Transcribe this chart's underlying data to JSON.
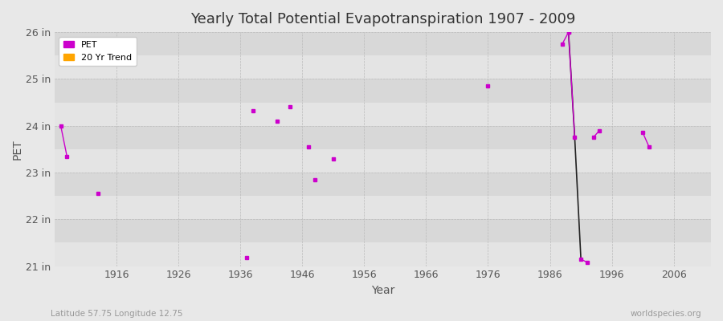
{
  "title": "Yearly Total Potential Evapotranspiration 1907 - 2009",
  "xlabel": "Year",
  "ylabel": "PET",
  "subtitle_left": "Latitude 57.75 Longitude 12.75",
  "subtitle_right": "worldspecies.org",
  "ylim": [
    21,
    26
  ],
  "xlim": [
    1906,
    2012
  ],
  "ytick_labels": [
    "21 in",
    "22 in",
    "23 in",
    "24 in",
    "25 in",
    "26 in"
  ],
  "ytick_values": [
    21,
    22,
    23,
    24,
    25,
    26
  ],
  "xtick_values": [
    1916,
    1926,
    1936,
    1946,
    1956,
    1966,
    1976,
    1986,
    1996,
    2006
  ],
  "background_color": "#e8e8e8",
  "plot_bg_color": "#ebebeb",
  "band_color_light": "#e4e4e4",
  "band_color_dark": "#d8d8d8",
  "pet_color": "#cc00cc",
  "trend_color": "#ffa500",
  "dark_line_color": "#222222",
  "pet_markersize": 3,
  "pet_linewidth": 1.0,
  "isolated_points": [
    [
      1913,
      22.55
    ],
    [
      1937,
      21.18
    ],
    [
      1938,
      24.32
    ],
    [
      1942,
      24.1
    ],
    [
      1944,
      24.4
    ],
    [
      1947,
      23.55
    ],
    [
      1948,
      22.85
    ],
    [
      1951,
      23.3
    ],
    [
      1976,
      24.85
    ]
  ],
  "pet_segments": [
    [
      [
        1907,
        24.0
      ],
      [
        1908,
        23.35
      ]
    ],
    [
      [
        1988,
        25.75
      ],
      [
        1989,
        26.0
      ]
    ],
    [
      [
        1989,
        26.0
      ],
      [
        1990,
        23.75
      ]
    ],
    [
      [
        1991,
        21.15
      ],
      [
        1992,
        21.08
      ]
    ],
    [
      [
        1993,
        23.75
      ],
      [
        1994,
        23.9
      ]
    ],
    [
      [
        2001,
        23.85
      ],
      [
        2002,
        23.55
      ]
    ]
  ],
  "dark_segments": [
    [
      [
        1989,
        26.0
      ],
      [
        1990,
        23.75
      ],
      [
        1991,
        21.15
      ]
    ]
  ]
}
